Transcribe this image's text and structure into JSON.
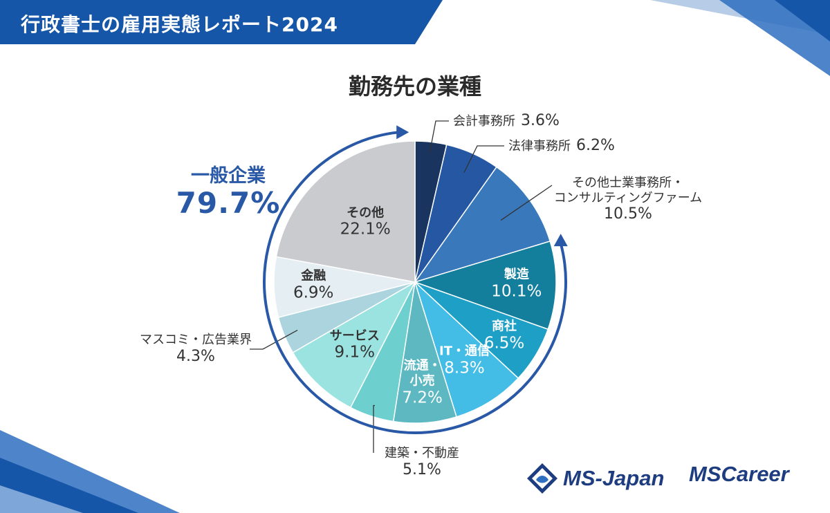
{
  "header": {
    "title": "行政書士の雇用実態レポート2024"
  },
  "chart_data": {
    "type": "pie",
    "title": "勤務先の業種",
    "slices": [
      {
        "name": "会計事務所",
        "value": 3.6,
        "label": "3.6%",
        "color": "#18345f"
      },
      {
        "name": "法律事務所",
        "value": 6.2,
        "label": "6.2%",
        "color": "#2557a3"
      },
      {
        "name": "その他士業事務所・コンサルティングファーム",
        "name_lines": [
          "その他士業事務所・",
          "コンサルティングファーム"
        ],
        "value": 10.5,
        "label": "10.5%",
        "color": "#3878bb"
      },
      {
        "name": "製造",
        "value": 10.1,
        "label": "10.1%",
        "color": "#137f9d"
      },
      {
        "name": "商社",
        "value": 6.5,
        "label": "6.5%",
        "color": "#1ea0c6"
      },
      {
        "name": "IT・通信",
        "value": 8.3,
        "label": "8.3%",
        "color": "#43bde6"
      },
      {
        "name": "流通・小売",
        "name_lines": [
          "流通・",
          "小売"
        ],
        "value": 7.2,
        "label": "7.2%",
        "color": "#5db8c1"
      },
      {
        "name": "建築・不動産",
        "value": 5.1,
        "label": "5.1%",
        "color": "#6ecfcf"
      },
      {
        "name": "サービス",
        "value": 9.1,
        "label": "9.1%",
        "color": "#9ae3e0"
      },
      {
        "name": "マスコミ・広告業界",
        "value": 4.3,
        "label": "4.3%",
        "color": "#acd4de"
      },
      {
        "name": "金融",
        "value": 6.9,
        "label": "6.9%",
        "color": "#e5eef2"
      },
      {
        "name": "その他",
        "value": 22.1,
        "label": "22.1%",
        "color": "#c9cbcf"
      }
    ],
    "group_annotation": {
      "name": "一般企業",
      "value": "79.7%",
      "color": "#2858a6"
    }
  },
  "logos": {
    "ms_japan": "MS-Japan",
    "ms_career": "MSCareer"
  },
  "colors": {
    "banner": "#1656a8",
    "accent": "#2858a6",
    "leader": "#333333"
  }
}
